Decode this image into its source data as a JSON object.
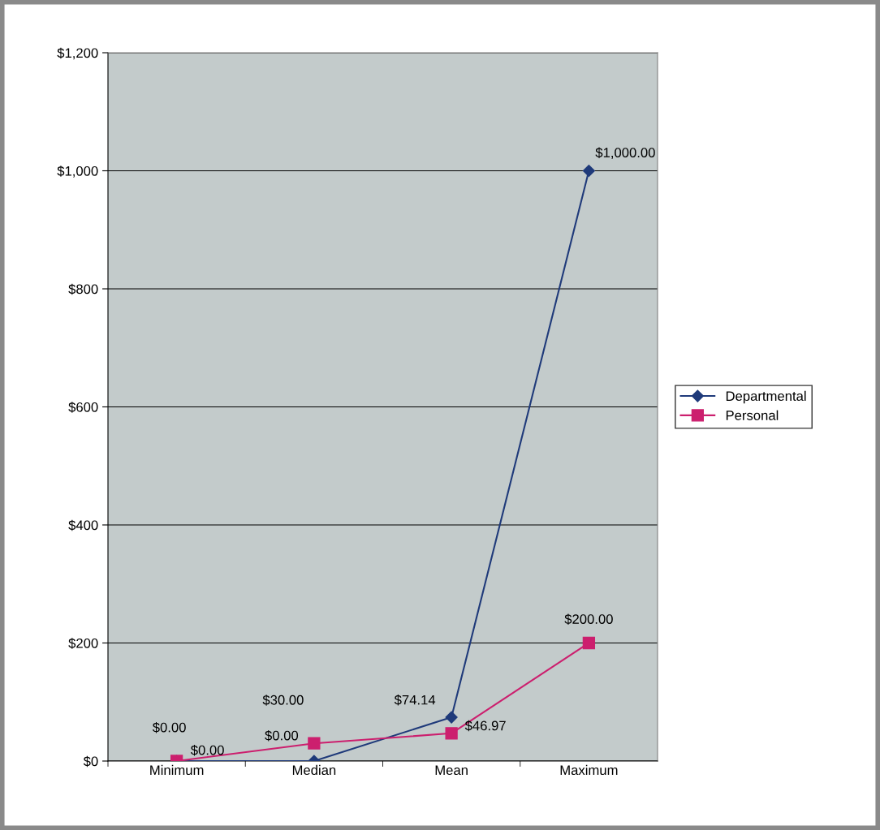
{
  "chart_data": {
    "type": "line",
    "categories": [
      "Minimum",
      "Median",
      "Mean",
      "Maximum"
    ],
    "series": [
      {
        "name": "Departmental",
        "color": "#1f3a7a",
        "marker": "diamond",
        "values": [
          0,
          0,
          74.14,
          1000
        ],
        "value_labels": [
          "$0.00",
          "$0.00",
          "$74.14",
          "$1,000.00"
        ]
      },
      {
        "name": "Personal",
        "color": "#cc1f6e",
        "marker": "square",
        "values": [
          0,
          30,
          46.97,
          200
        ],
        "value_labels": [
          "$0.00",
          "$30.00",
          "$46.97",
          "$200.00"
        ]
      }
    ],
    "ylim": [
      0,
      1200
    ],
    "yticks": [
      {
        "value": 0,
        "label": "$0"
      },
      {
        "value": 200,
        "label": "$200"
      },
      {
        "value": 400,
        "label": "$400"
      },
      {
        "value": 600,
        "label": "$600"
      },
      {
        "value": 800,
        "label": "$800"
      },
      {
        "value": 1000,
        "label": "$1,000"
      },
      {
        "value": 1200,
        "label": "$1,200"
      }
    ],
    "grid": "y",
    "legend": "right",
    "line_style": "solid"
  }
}
